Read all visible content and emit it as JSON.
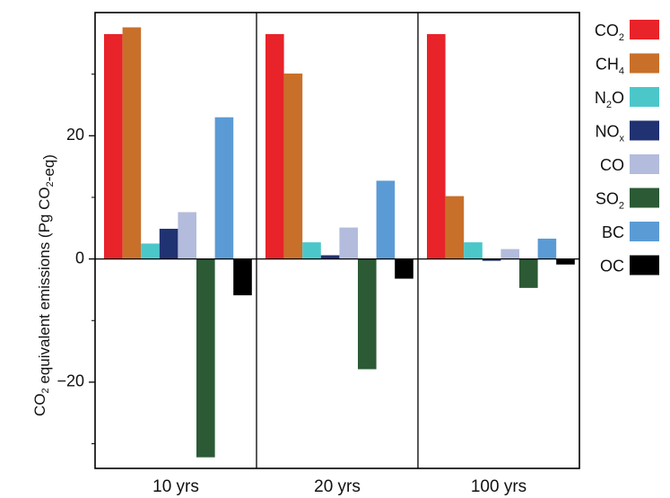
{
  "chart_data": {
    "type": "bar",
    "title": "",
    "xlabel": "",
    "ylabel": "CO2 equivalent emissions (Pg CO2-eq)",
    "ylim": [
      -34,
      40
    ],
    "yticks": [
      -20,
      0,
      20
    ],
    "grid": false,
    "legend_position": "right",
    "categories": [
      "10 yrs",
      "20 yrs",
      "100 yrs"
    ],
    "series": [
      {
        "name": "CO2",
        "label_base": "CO",
        "label_sub": "2",
        "color": "#e8232a",
        "values": [
          36.5,
          36.5,
          36.5
        ]
      },
      {
        "name": "CH4",
        "label_base": "CH",
        "label_sub": "4",
        "color": "#c8702a",
        "values": [
          37.6,
          30.1,
          10.2
        ]
      },
      {
        "name": "N2O",
        "label_base": "N",
        "label_sub": "2",
        "label_tail": "O",
        "color": "#4cc7c9",
        "values": [
          2.5,
          2.7,
          2.7
        ]
      },
      {
        "name": "NOx",
        "label_base": "NO",
        "label_sub": "x",
        "color": "#213272",
        "values": [
          4.9,
          0.6,
          -0.3
        ]
      },
      {
        "name": "CO",
        "label_base": "CO",
        "color": "#b3bcdc",
        "values": [
          7.6,
          5.1,
          1.6
        ]
      },
      {
        "name": "SO2",
        "label_base": "SO",
        "label_sub": "2",
        "color": "#2b5a35",
        "values": [
          -32.2,
          -17.9,
          -4.7
        ]
      },
      {
        "name": "BC",
        "label_base": "BC",
        "color": "#5b9bd5",
        "values": [
          23.0,
          12.7,
          3.3
        ]
      },
      {
        "name": "OC",
        "label_base": "OC",
        "color": "#000000",
        "values": [
          -5.9,
          -3.2,
          -0.9
        ]
      }
    ]
  }
}
